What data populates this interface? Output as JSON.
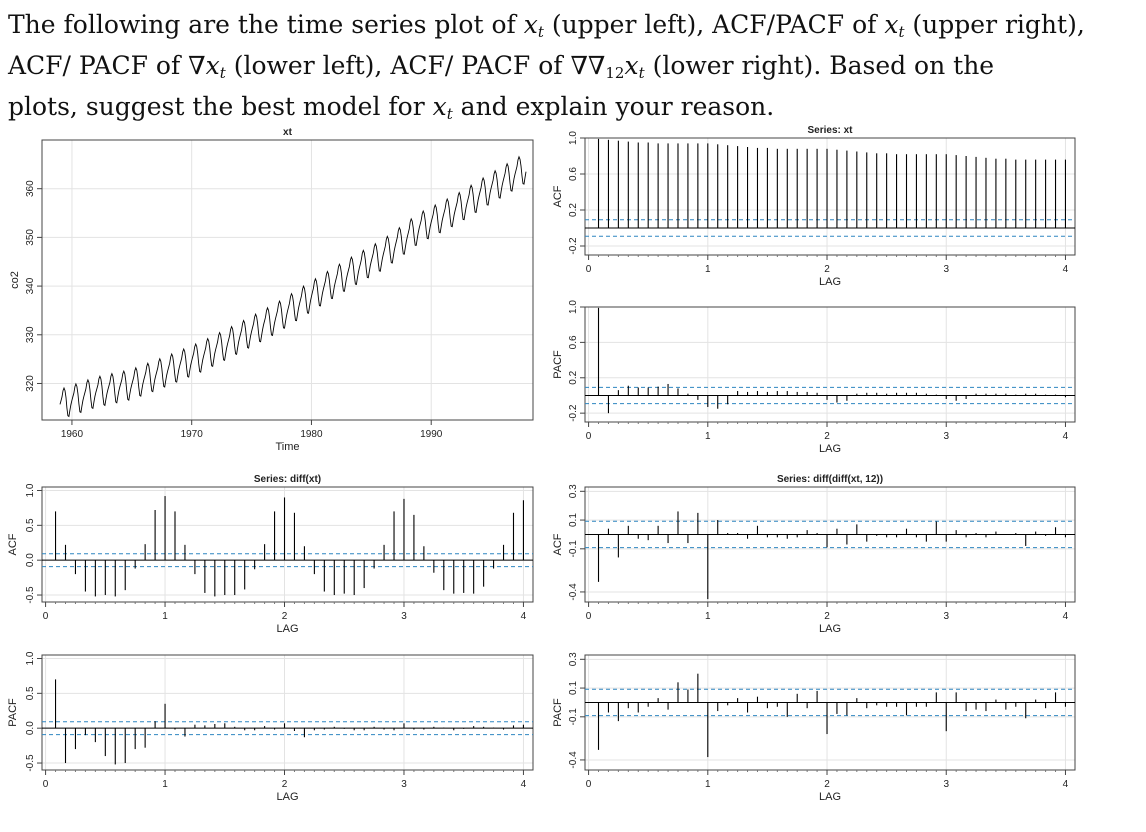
{
  "question": {
    "line1": [
      "The following are the time series plot of ",
      "x",
      "t",
      " (upper left), ACF/PACF of ",
      "x",
      "t",
      " (upper right),"
    ],
    "line2": [
      "ACF/ PACF of ∇",
      "x",
      "t",
      " (lower left), ACF/ PACF of ∇∇",
      "12",
      "x",
      "t",
      " (lower right). Based on the"
    ],
    "line3": [
      "plots, suggest the best model for ",
      "x",
      "t",
      " and explain your reason."
    ]
  },
  "chart_data": [
    {
      "id": "ts",
      "type": "line",
      "title": "xt",
      "xlabel": "Time",
      "ylabel": "co2",
      "xlim": [
        1957.5,
        1998.5
      ],
      "ylim": [
        312.5,
        370
      ],
      "xticks": [
        1960,
        1970,
        1980,
        1990
      ],
      "yticks": [
        320,
        330,
        340,
        350,
        360
      ],
      "grid": true,
      "series": [
        {
          "start": 1959.0,
          "step": 0.0833333,
          "count": 468,
          "color": "#000000",
          "anchor_years": [
            1959,
            1962,
            1965,
            1968,
            1971,
            1974,
            1977,
            1980,
            1983,
            1986,
            1989,
            1992,
            1995,
            1998
          ],
          "anchor_levels": [
            315.8,
            318.3,
            319.9,
            322.7,
            325.8,
            329.5,
            333.4,
            338.0,
            342.5,
            346.6,
            352.0,
            355.7,
            360.2,
            364.5
          ],
          "seasonal": [
            -0.1,
            0.6,
            1.3,
            2.5,
            3.0,
            2.4,
            0.9,
            -1.3,
            -3.0,
            -3.2,
            -2.0,
            -0.9
          ]
        }
      ]
    },
    {
      "id": "xt_acf",
      "type": "bar",
      "title": "Series:  xt",
      "xlabel": "LAG",
      "ylabel": "ACF",
      "xlim": [
        -0.03,
        4.08
      ],
      "ylim": [
        -0.3,
        1.0
      ],
      "xticks": [
        0,
        1,
        2,
        3,
        4
      ],
      "yticks": [
        -0.2,
        0.2,
        0.6,
        1.0
      ],
      "conf": 0.092,
      "lags": [
        0.0833,
        0.1667,
        0.25,
        0.3333,
        0.4167,
        0.5,
        0.5833,
        0.6667,
        0.75,
        0.8333,
        0.9167,
        1.0,
        1.0833,
        1.1667,
        1.25,
        1.3333,
        1.4167,
        1.5,
        1.5833,
        1.6667,
        1.75,
        1.8333,
        1.9167,
        2.0,
        2.0833,
        2.1667,
        2.25,
        2.3333,
        2.4167,
        2.5,
        2.5833,
        2.6667,
        2.75,
        2.8333,
        2.9167,
        3.0,
        3.0833,
        3.1667,
        3.25,
        3.3333,
        3.4167,
        3.5,
        3.5833,
        3.6667,
        3.75,
        3.8333,
        3.9167,
        4.0
      ],
      "values": [
        0.99,
        0.98,
        0.97,
        0.96,
        0.95,
        0.95,
        0.94,
        0.94,
        0.94,
        0.94,
        0.94,
        0.94,
        0.93,
        0.92,
        0.91,
        0.9,
        0.89,
        0.89,
        0.88,
        0.88,
        0.88,
        0.88,
        0.88,
        0.88,
        0.87,
        0.86,
        0.85,
        0.84,
        0.83,
        0.83,
        0.82,
        0.82,
        0.82,
        0.82,
        0.82,
        0.82,
        0.81,
        0.8,
        0.79,
        0.78,
        0.77,
        0.77,
        0.76,
        0.76,
        0.76,
        0.76,
        0.76,
        0.76
      ]
    },
    {
      "id": "xt_pacf",
      "type": "bar",
      "title": "",
      "xlabel": "LAG",
      "ylabel": "PACF",
      "xlim": [
        -0.03,
        4.08
      ],
      "ylim": [
        -0.3,
        1.0
      ],
      "xticks": [
        0,
        1,
        2,
        3,
        4
      ],
      "yticks": [
        -0.2,
        0.2,
        0.6,
        1.0
      ],
      "conf": 0.092,
      "lags": [
        0.0833,
        0.1667,
        0.25,
        0.3333,
        0.4167,
        0.5,
        0.5833,
        0.6667,
        0.75,
        0.8333,
        0.9167,
        1.0,
        1.0833,
        1.1667,
        1.25,
        1.3333,
        1.4167,
        1.5,
        1.5833,
        1.6667,
        1.75,
        1.8333,
        1.9167,
        2.0,
        2.0833,
        2.1667,
        2.25,
        2.3333,
        2.4167,
        2.5,
        2.5833,
        2.6667,
        2.75,
        2.8333,
        2.9167,
        3.0,
        3.0833,
        3.1667,
        3.25,
        3.3333,
        3.4167,
        3.5,
        3.5833,
        3.6667,
        3.75,
        3.8333,
        3.9167,
        4.0
      ],
      "values": [
        0.99,
        -0.2,
        0.06,
        0.11,
        0.09,
        0.09,
        0.1,
        0.13,
        0.08,
        0.02,
        -0.05,
        -0.13,
        -0.15,
        -0.1,
        0.05,
        0.04,
        0.05,
        0.04,
        0.05,
        0.05,
        0.04,
        0.04,
        0.03,
        -0.05,
        -0.08,
        -0.06,
        0.02,
        0.03,
        0.03,
        0.02,
        0.03,
        0.03,
        0.03,
        0.02,
        0.01,
        -0.04,
        -0.06,
        -0.04,
        0.02,
        0.02,
        0.02,
        0.02,
        0.01,
        0.02,
        0.02,
        0.01,
        0.01,
        -0.02
      ]
    },
    {
      "id": "dxt_acf",
      "type": "bar",
      "title": "Series:  diff(xt)",
      "xlabel": "LAG",
      "ylabel": "ACF",
      "xlim": [
        -0.03,
        4.08
      ],
      "ylim": [
        -0.6,
        1.05
      ],
      "xticks": [
        0,
        1,
        2,
        3,
        4
      ],
      "yticks": [
        -0.5,
        0.0,
        0.5,
        1.0
      ],
      "conf": 0.092,
      "lags": [
        0.0833,
        0.1667,
        0.25,
        0.3333,
        0.4167,
        0.5,
        0.5833,
        0.6667,
        0.75,
        0.8333,
        0.9167,
        1.0,
        1.0833,
        1.1667,
        1.25,
        1.3333,
        1.4167,
        1.5,
        1.5833,
        1.6667,
        1.75,
        1.8333,
        1.9167,
        2.0,
        2.0833,
        2.1667,
        2.25,
        2.3333,
        2.4167,
        2.5,
        2.5833,
        2.6667,
        2.75,
        2.8333,
        2.9167,
        3.0,
        3.0833,
        3.1667,
        3.25,
        3.3333,
        3.4167,
        3.5,
        3.5833,
        3.6667,
        3.75,
        3.8333,
        3.9167,
        4.0
      ],
      "values": [
        0.7,
        0.22,
        -0.2,
        -0.45,
        -0.52,
        -0.5,
        -0.52,
        -0.43,
        -0.12,
        0.23,
        0.72,
        0.92,
        0.7,
        0.22,
        -0.2,
        -0.47,
        -0.52,
        -0.5,
        -0.5,
        -0.42,
        -0.13,
        0.23,
        0.7,
        0.9,
        0.68,
        0.2,
        -0.2,
        -0.45,
        -0.5,
        -0.48,
        -0.5,
        -0.4,
        -0.12,
        0.22,
        0.7,
        0.88,
        0.65,
        0.2,
        -0.18,
        -0.43,
        -0.48,
        -0.47,
        -0.48,
        -0.38,
        -0.12,
        0.22,
        0.68,
        0.86
      ]
    },
    {
      "id": "dxt_pacf",
      "type": "bar",
      "title": "",
      "xlabel": "LAG",
      "ylabel": "PACF",
      "xlim": [
        -0.03,
        4.08
      ],
      "ylim": [
        -0.6,
        1.05
      ],
      "xticks": [
        0,
        1,
        2,
        3,
        4
      ],
      "yticks": [
        -0.5,
        0.0,
        0.5,
        1.0
      ],
      "conf": 0.092,
      "lags": [
        0.0833,
        0.1667,
        0.25,
        0.3333,
        0.4167,
        0.5,
        0.5833,
        0.6667,
        0.75,
        0.8333,
        0.9167,
        1.0,
        1.0833,
        1.1667,
        1.25,
        1.3333,
        1.4167,
        1.5,
        1.5833,
        1.6667,
        1.75,
        1.8333,
        1.9167,
        2.0,
        2.0833,
        2.1667,
        2.25,
        2.3333,
        2.4167,
        2.5,
        2.5833,
        2.6667,
        2.75,
        2.8333,
        2.9167,
        3.0,
        3.0833,
        3.1667,
        3.25,
        3.3333,
        3.4167,
        3.5,
        3.5833,
        3.6667,
        3.75,
        3.8333,
        3.9167,
        4.0
      ],
      "values": [
        0.7,
        -0.5,
        -0.3,
        -0.1,
        -0.2,
        -0.4,
        -0.52,
        -0.5,
        -0.3,
        -0.28,
        0.1,
        0.35,
        -0.02,
        -0.12,
        0.05,
        0.04,
        0.06,
        0.07,
        0.02,
        -0.03,
        -0.03,
        0.03,
        -0.02,
        0.07,
        -0.04,
        -0.13,
        -0.03,
        -0.02,
        0.02,
        -0.01,
        -0.03,
        -0.03,
        0.02,
        -0.02,
        -0.03,
        0.07,
        -0.02,
        -0.02,
        0.02,
        0.01,
        -0.03,
        -0.01,
        0.03,
        0.02,
        0.01,
        -0.02,
        0.04,
        0.05
      ]
    },
    {
      "id": "sdxt_acf",
      "type": "bar",
      "title": "Series:  diff(diff(xt, 12))",
      "xlabel": "LAG",
      "ylabel": "ACF",
      "xlim": [
        -0.03,
        4.08
      ],
      "ylim": [
        -0.47,
        0.33
      ],
      "xticks": [
        0,
        1,
        2,
        3,
        4
      ],
      "yticks": [
        -0.4,
        -0.1,
        0.1,
        0.3
      ],
      "conf": 0.092,
      "lags": [
        0.0833,
        0.1667,
        0.25,
        0.3333,
        0.4167,
        0.5,
        0.5833,
        0.6667,
        0.75,
        0.8333,
        0.9167,
        1.0,
        1.0833,
        1.1667,
        1.25,
        1.3333,
        1.4167,
        1.5,
        1.5833,
        1.6667,
        1.75,
        1.8333,
        1.9167,
        2.0,
        2.0833,
        2.1667,
        2.25,
        2.3333,
        2.4167,
        2.5,
        2.5833,
        2.6667,
        2.75,
        2.8333,
        2.9167,
        3.0,
        3.0833,
        3.1667,
        3.25,
        3.3333,
        3.4167,
        3.5,
        3.5833,
        3.6667,
        3.75,
        3.8333,
        3.9167,
        4.0
      ],
      "values": [
        -0.33,
        0.04,
        -0.16,
        0.06,
        -0.03,
        -0.04,
        0.06,
        -0.06,
        0.16,
        -0.06,
        0.15,
        -0.45,
        0.1,
        0.01,
        0.01,
        -0.03,
        0.06,
        -0.02,
        -0.02,
        -0.03,
        -0.02,
        0.03,
        0.01,
        -0.09,
        0.04,
        -0.07,
        0.07,
        -0.05,
        -0.01,
        -0.02,
        -0.02,
        0.04,
        -0.02,
        -0.05,
        0.09,
        -0.05,
        0.03,
        -0.02,
        0.01,
        -0.02,
        0.02,
        0.0,
        0.01,
        -0.08,
        0.02,
        -0.01,
        0.05,
        -0.02
      ]
    },
    {
      "id": "sdxt_pacf",
      "type": "bar",
      "title": "",
      "xlabel": "LAG",
      "ylabel": "PACF",
      "xlim": [
        -0.03,
        4.08
      ],
      "ylim": [
        -0.47,
        0.33
      ],
      "xticks": [
        0,
        1,
        2,
        3,
        4
      ],
      "yticks": [
        -0.4,
        -0.1,
        0.1,
        0.3
      ],
      "conf": 0.092,
      "lags": [
        0.0833,
        0.1667,
        0.25,
        0.3333,
        0.4167,
        0.5,
        0.5833,
        0.6667,
        0.75,
        0.8333,
        0.9167,
        1.0,
        1.0833,
        1.1667,
        1.25,
        1.3333,
        1.4167,
        1.5,
        1.5833,
        1.6667,
        1.75,
        1.8333,
        1.9167,
        2.0,
        2.0833,
        2.1667,
        2.25,
        2.3333,
        2.4167,
        2.5,
        2.5833,
        2.6667,
        2.75,
        2.8333,
        2.9167,
        3.0,
        3.0833,
        3.1667,
        3.25,
        3.3333,
        3.4167,
        3.5,
        3.5833,
        3.6667,
        3.75,
        3.8333,
        3.9167,
        4.0
      ],
      "values": [
        -0.33,
        -0.07,
        -0.13,
        -0.04,
        -0.07,
        -0.03,
        0.03,
        -0.05,
        0.14,
        0.09,
        0.2,
        -0.38,
        -0.06,
        -0.02,
        0.03,
        -0.07,
        0.04,
        -0.04,
        -0.03,
        -0.1,
        0.06,
        -0.04,
        0.08,
        -0.22,
        -0.08,
        -0.09,
        0.03,
        -0.04,
        -0.02,
        -0.03,
        -0.03,
        -0.09,
        -0.03,
        -0.03,
        0.07,
        -0.2,
        0.07,
        -0.06,
        -0.05,
        -0.06,
        0.02,
        -0.05,
        -0.03,
        -0.11,
        0.02,
        -0.04,
        0.07,
        -0.03
      ]
    }
  ]
}
